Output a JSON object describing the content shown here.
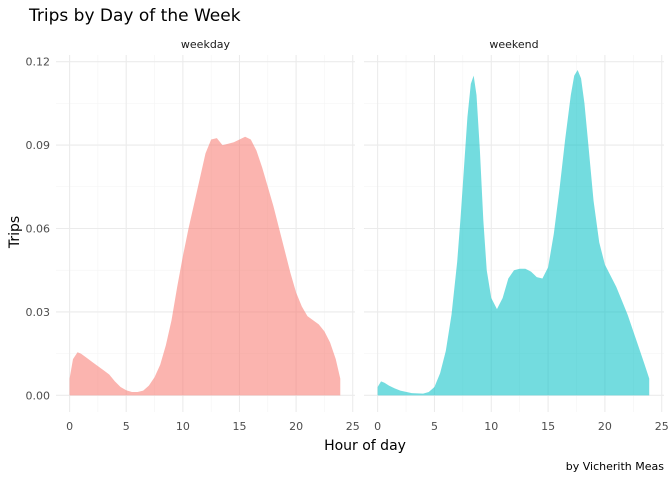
{
  "chart_data": {
    "type": "area",
    "title": "Trips by Day of the Week",
    "xlabel": "Hour of day",
    "ylabel": "Trips",
    "caption": "by Vicherith Meas",
    "xlim": [
      -1.2,
      25.2
    ],
    "ylim": [
      -0.006,
      0.1224
    ],
    "x_ticks": [
      0,
      5,
      10,
      15,
      20,
      25
    ],
    "x_tick_labels": [
      "0",
      "5",
      "10",
      "15",
      "20",
      "25"
    ],
    "y_ticks": [
      0.0,
      0.03,
      0.06,
      0.09,
      0.12
    ],
    "y_tick_labels": [
      "0.00",
      "0.03",
      "0.06",
      "0.09",
      "0.12"
    ],
    "grid": true,
    "facets": [
      {
        "label": "weekday",
        "color": "#F8766D",
        "x": [
          0,
          0.3,
          0.7,
          1,
          1.5,
          2,
          2.5,
          3,
          3.5,
          4,
          4.5,
          5,
          5.5,
          6,
          6.5,
          7,
          7.5,
          8,
          8.5,
          9,
          9.5,
          10,
          10.5,
          11,
          11.5,
          12,
          12.5,
          13,
          13.5,
          14,
          14.5,
          15,
          15.5,
          16,
          16.5,
          17,
          17.5,
          18,
          18.5,
          19,
          19.5,
          20,
          20.5,
          21,
          21.5,
          22,
          22.5,
          23,
          23.5,
          23.9
        ],
        "y": [
          0.006,
          0.013,
          0.0155,
          0.015,
          0.0135,
          0.012,
          0.0105,
          0.009,
          0.0075,
          0.005,
          0.003,
          0.0018,
          0.0012,
          0.0012,
          0.0017,
          0.0035,
          0.0065,
          0.011,
          0.018,
          0.027,
          0.039,
          0.05,
          0.06,
          0.069,
          0.078,
          0.087,
          0.092,
          0.0925,
          0.09,
          0.0905,
          0.091,
          0.092,
          0.093,
          0.092,
          0.088,
          0.082,
          0.075,
          0.068,
          0.06,
          0.052,
          0.044,
          0.037,
          0.032,
          0.0285,
          0.027,
          0.0255,
          0.023,
          0.019,
          0.013,
          0.006
        ]
      },
      {
        "label": "weekend",
        "color": "#00BFC4",
        "x": [
          0,
          0.3,
          0.6,
          1,
          1.5,
          2,
          3,
          4,
          4.5,
          5,
          5.5,
          6,
          6.5,
          7,
          7.3,
          7.6,
          7.9,
          8.2,
          8.45,
          8.7,
          9,
          9.3,
          9.6,
          10,
          10.5,
          11,
          11.5,
          12,
          12.5,
          13,
          13.5,
          14,
          14.5,
          15,
          15.5,
          16,
          16.5,
          17,
          17.3,
          17.6,
          17.9,
          18.2,
          18.5,
          19,
          19.5,
          20,
          20.5,
          21,
          21.5,
          22,
          22.5,
          23,
          23.5,
          23.9
        ],
        "y": [
          0.003,
          0.005,
          0.0045,
          0.0035,
          0.0025,
          0.0017,
          0.0008,
          0.0006,
          0.0012,
          0.003,
          0.008,
          0.016,
          0.029,
          0.048,
          0.064,
          0.082,
          0.1,
          0.112,
          0.115,
          0.108,
          0.088,
          0.063,
          0.045,
          0.035,
          0.031,
          0.035,
          0.042,
          0.045,
          0.0455,
          0.0455,
          0.0445,
          0.0425,
          0.042,
          0.046,
          0.058,
          0.074,
          0.092,
          0.108,
          0.115,
          0.117,
          0.114,
          0.105,
          0.092,
          0.07,
          0.055,
          0.047,
          0.043,
          0.039,
          0.034,
          0.029,
          0.023,
          0.017,
          0.011,
          0.006
        ]
      }
    ]
  }
}
